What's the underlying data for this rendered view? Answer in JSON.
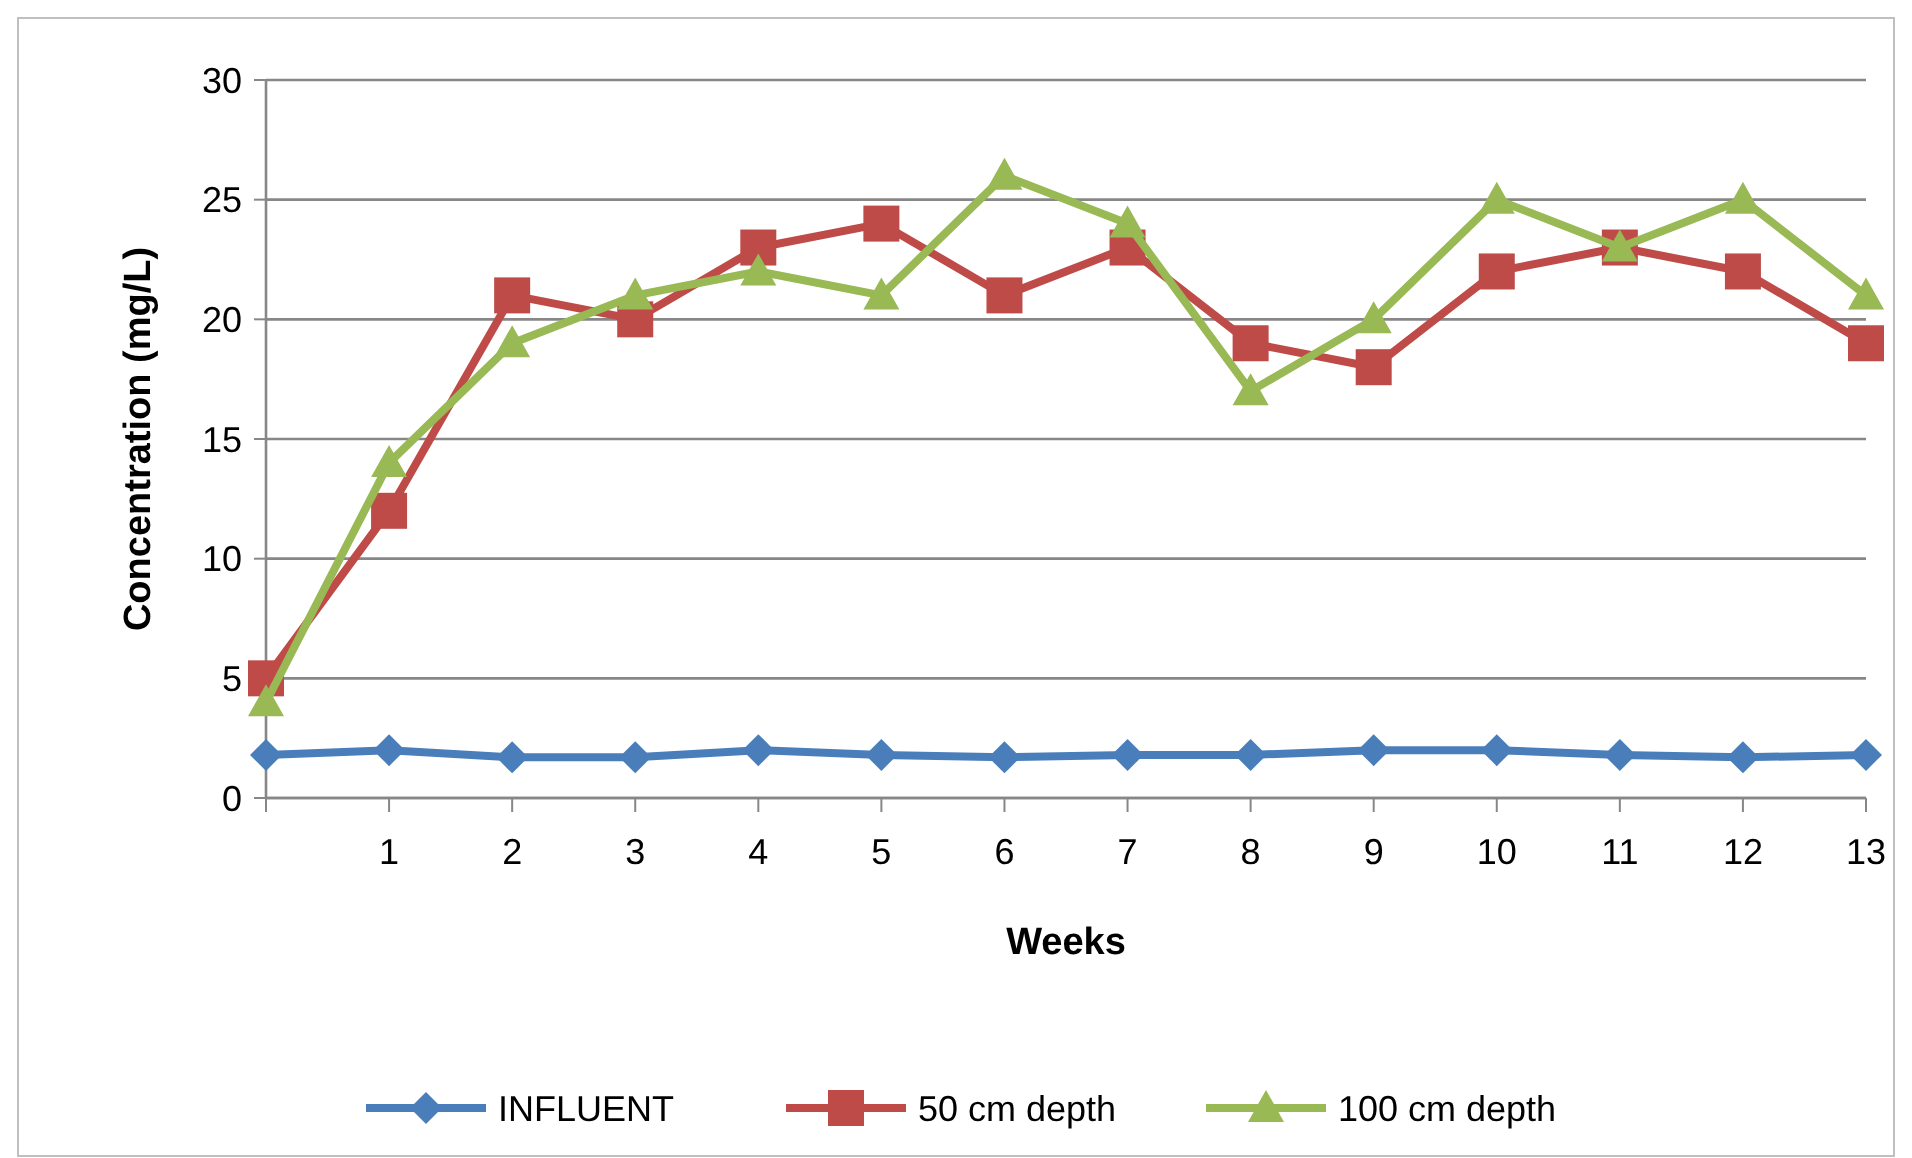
{
  "chart_data": {
    "type": "line",
    "xlabel": "Weeks",
    "ylabel": "Concentration (mg/L)",
    "x": [
      0,
      1,
      2,
      3,
      4,
      5,
      6,
      7,
      8,
      9,
      10,
      11,
      12,
      13
    ],
    "xlim": [
      0,
      13
    ],
    "xticks": [
      {
        "value": 0,
        "label": null
      },
      1,
      2,
      3,
      4,
      5,
      6,
      7,
      8,
      9,
      10,
      11,
      12,
      13
    ],
    "series": [
      {
        "name": "INFLUENT",
        "color": "#4a7ebb",
        "marker": "diamond",
        "values": [
          1.8,
          2,
          1.7,
          1.7,
          2,
          1.8,
          1.7,
          1.8,
          1.8,
          2,
          2,
          1.8,
          1.7,
          1.8
        ]
      },
      {
        "name": "50 cm depth",
        "color": "#be4b48",
        "marker": "square",
        "values": [
          5,
          12,
          21,
          20,
          23,
          24,
          21,
          23,
          19,
          18,
          22,
          23,
          22,
          19
        ]
      },
      {
        "name": "100 cm depth",
        "color": "#98b954",
        "marker": "triangle",
        "values": [
          4,
          14,
          19,
          21,
          22,
          21,
          26,
          24,
          17,
          20,
          25,
          23,
          25,
          21
        ]
      }
    ],
    "ylim": [
      0,
      30
    ],
    "yticks": [
      0,
      5,
      10,
      15,
      20,
      25,
      30
    ],
    "grid": "y",
    "legend": "bottom",
    "line_style": "solid"
  }
}
